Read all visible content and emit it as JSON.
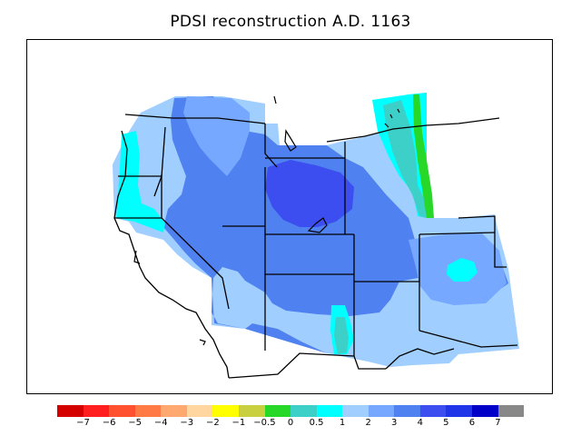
{
  "title": "PDSI reconstruction A.D. 1163",
  "colorbar": {
    "colors": [
      "#d40000",
      "#ff1f1f",
      "#ff5030",
      "#ff7a45",
      "#ffa870",
      "#ffd6a0",
      "#ffff00",
      "#c8d040",
      "#28d828",
      "#3cd0c8",
      "#00ffff",
      "#a0cfff",
      "#76a8ff",
      "#4f81f0",
      "#3c4ef0",
      "#2034e8",
      "#0000c8",
      "#888888"
    ],
    "labels": [
      "−7",
      "−6",
      "−5",
      "−4",
      "−3",
      "−2",
      "−1",
      "−0.5",
      "0",
      "0.5",
      "1",
      "2",
      "3",
      "4",
      "5",
      "6",
      "7"
    ]
  },
  "map": {
    "region": "Western United States",
    "palette": {
      "light_blue": "#a0cfff",
      "mid_blue": "#76a8ff",
      "blue": "#4f81f0",
      "deep_blue": "#3c4ef0",
      "cyan": "#00ffff",
      "teal": "#3cd0c8",
      "green": "#28d828",
      "outline": "#000000"
    }
  }
}
